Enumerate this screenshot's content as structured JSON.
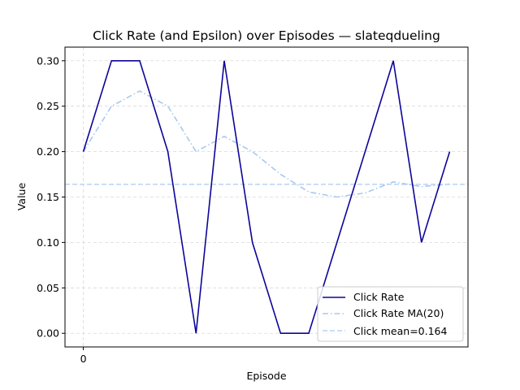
{
  "chart_data": {
    "type": "line",
    "title": "Click Rate (and Epsilon) over Episodes — slateqdueling",
    "xlabel": "Episode",
    "ylabel": "Value",
    "x_ticks": [
      "0"
    ],
    "y_ticks": [
      "0.00",
      "0.05",
      "0.10",
      "0.15",
      "0.20",
      "0.25",
      "0.30"
    ],
    "xlim": [
      -0.65,
      13.65
    ],
    "ylim": [
      -0.015,
      0.315
    ],
    "grid": true,
    "legend_position": "lower-right",
    "series": [
      {
        "name": "Click Rate",
        "style": "solid",
        "color": "#0d0599",
        "x": [
          0,
          1,
          2,
          3,
          4,
          5,
          6,
          7,
          8,
          9,
          10,
          11,
          12,
          13
        ],
        "y": [
          0.2,
          0.3,
          0.3,
          0.2,
          0.0,
          0.3,
          0.1,
          0.0,
          0.0,
          0.1,
          0.2,
          0.3,
          0.1,
          0.2
        ]
      },
      {
        "name": "Click Rate MA(20)",
        "style": "dashdot",
        "color": "#a9c8f0",
        "x": [
          0,
          1,
          2,
          3,
          4,
          5,
          6,
          7,
          8,
          9,
          10,
          11,
          12,
          13
        ],
        "y": [
          0.2,
          0.25,
          0.2667,
          0.25,
          0.2,
          0.2167,
          0.2,
          0.175,
          0.1556,
          0.15,
          0.1545,
          0.1667,
          0.1615,
          0.1643
        ]
      },
      {
        "name": "Click mean=0.164",
        "style": "dashed",
        "color": "#b9d3f4",
        "hline": 0.164
      }
    ]
  }
}
